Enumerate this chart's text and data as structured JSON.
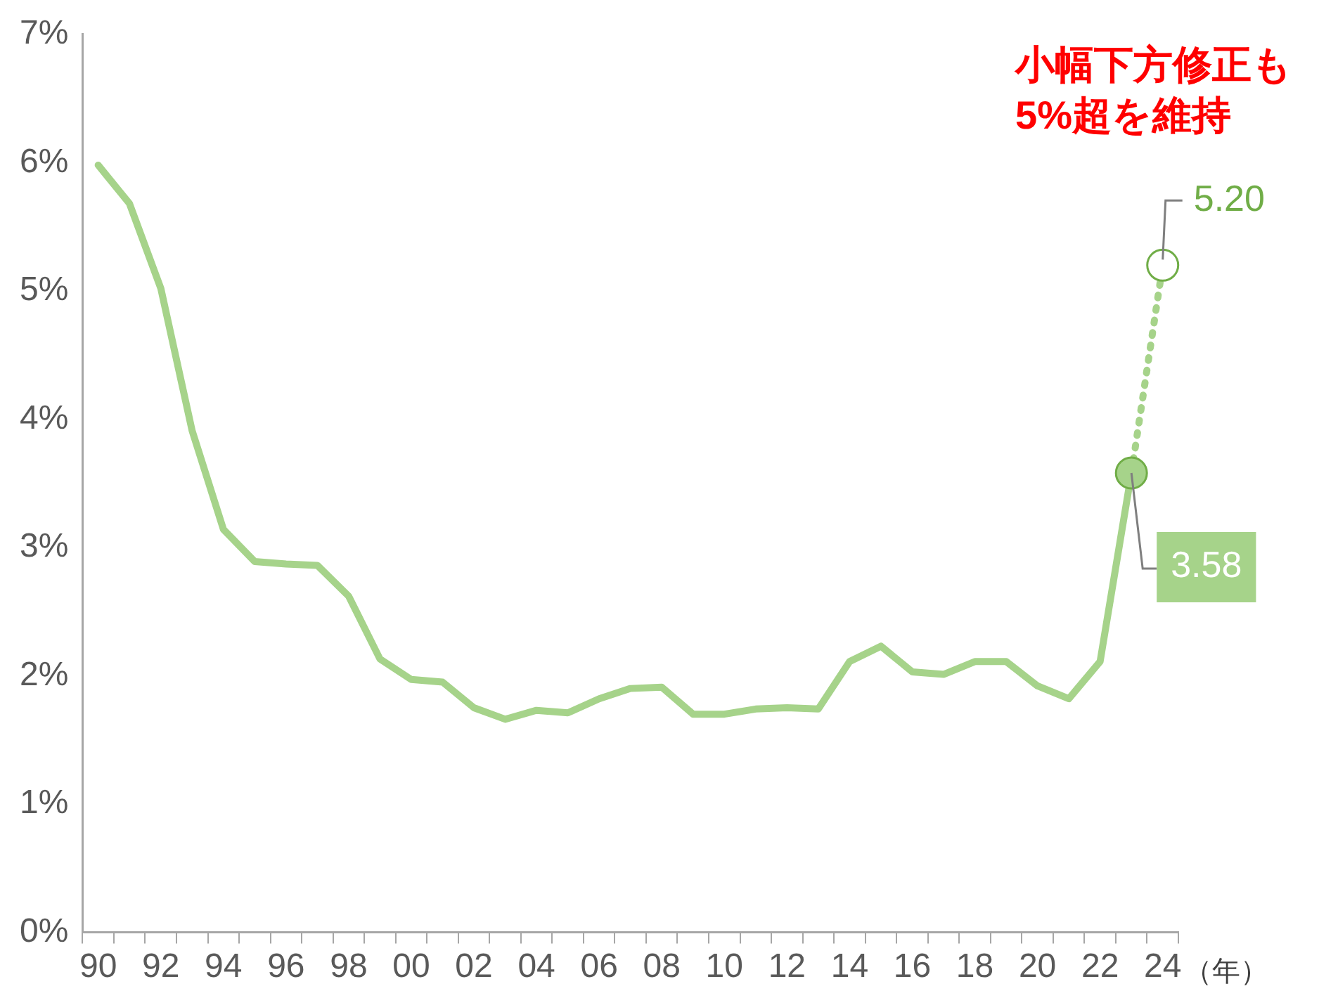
{
  "chart_data": {
    "type": "line",
    "xlabel": "（年）",
    "categories": [
      "90",
      null,
      "92",
      null,
      "94",
      null,
      "96",
      null,
      "98",
      null,
      "00",
      null,
      "02",
      null,
      "04",
      null,
      "06",
      null,
      "08",
      null,
      "10",
      null,
      "12",
      null,
      "14",
      null,
      "16",
      null,
      "18",
      null,
      "20",
      null,
      "22",
      null,
      "24"
    ],
    "series": [
      {
        "color": "#a6d38a",
        "line_style": "solid",
        "marker": "none",
        "values": [
          5.98,
          5.68,
          5.02,
          3.91,
          3.14,
          2.89,
          2.87,
          2.86,
          2.62,
          2.13,
          1.97,
          1.95,
          1.75,
          1.66,
          1.73,
          1.71,
          1.82,
          1.9,
          1.91,
          1.7,
          1.7,
          1.74,
          1.75,
          1.74,
          2.11,
          2.23,
          2.03,
          2.01,
          2.11,
          2.11,
          1.92,
          1.82,
          2.11,
          3.58,
          null
        ]
      },
      {
        "color": "#a6d38a",
        "line_style": "dotted",
        "marker": "circle",
        "values": [
          null,
          null,
          null,
          null,
          null,
          null,
          null,
          null,
          null,
          null,
          null,
          null,
          null,
          null,
          null,
          null,
          null,
          null,
          null,
          null,
          null,
          null,
          null,
          null,
          null,
          null,
          null,
          null,
          null,
          null,
          null,
          null,
          null,
          3.58,
          5.2
        ],
        "value_labels": [
          null,
          null,
          null,
          null,
          null,
          null,
          null,
          null,
          null,
          null,
          null,
          null,
          null,
          null,
          null,
          null,
          null,
          null,
          null,
          null,
          null,
          null,
          null,
          null,
          null,
          null,
          null,
          null,
          null,
          null,
          null,
          null,
          null,
          "3.58",
          "5.20"
        ]
      }
    ],
    "ylim": [
      0,
      7
    ],
    "yticks": [
      {
        "value": 0,
        "label": "0%"
      },
      {
        "value": 1,
        "label": "1%"
      },
      {
        "value": 2,
        "label": "2%"
      },
      {
        "value": 3,
        "label": "3%"
      },
      {
        "value": 4,
        "label": "4%"
      },
      {
        "value": 5,
        "label": "5%"
      },
      {
        "value": 6,
        "label": "6%"
      },
      {
        "value": 7,
        "label": "7%"
      }
    ],
    "grid": false,
    "legend": false,
    "annotations": [
      "小幅下方修正も\n5%超を維持"
    ]
  }
}
